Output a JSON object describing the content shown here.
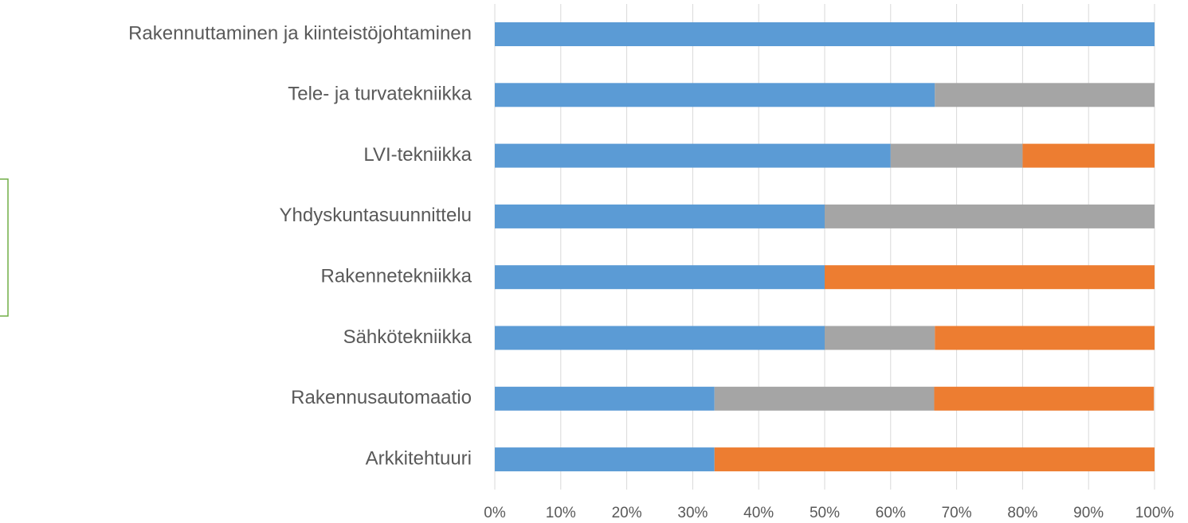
{
  "chart_data": {
    "type": "stacked-barh",
    "categories": [
      "Rakennuttaminen ja kiinteistöjohtaminen",
      "Tele- ja turvatekniikka",
      "LVI-tekniikka",
      "Yhdyskuntasuunnittelu",
      "Rakennetekniikka",
      "Sähkötekniikka",
      "Rakennusautomaatio",
      "Arkkitehtuuri"
    ],
    "series": [
      {
        "color": "#5b9bd5",
        "values": [
          100,
          66.7,
          60,
          50,
          50,
          50,
          33.3,
          33.3
        ]
      },
      {
        "color": "#a5a5a5",
        "values": [
          0,
          33.3,
          20,
          50,
          0,
          16.7,
          33.3,
          0
        ]
      },
      {
        "color": "#ed7d31",
        "values": [
          0,
          0,
          20,
          0,
          50,
          33.3,
          33.3,
          66.7
        ]
      }
    ],
    "xlim": [
      0,
      100
    ],
    "xticks": [
      {
        "value": 0,
        "label": "0%"
      },
      {
        "value": 10,
        "label": "10%"
      },
      {
        "value": 20,
        "label": "20%"
      },
      {
        "value": 30,
        "label": "30%"
      },
      {
        "value": 40,
        "label": "40%"
      },
      {
        "value": 50,
        "label": "50%"
      },
      {
        "value": 60,
        "label": "60%"
      },
      {
        "value": 70,
        "label": "70%"
      },
      {
        "value": 80,
        "label": "80%"
      },
      {
        "value": 90,
        "label": "90%"
      },
      {
        "value": 100,
        "label": "100%"
      }
    ],
    "grid": true
  }
}
